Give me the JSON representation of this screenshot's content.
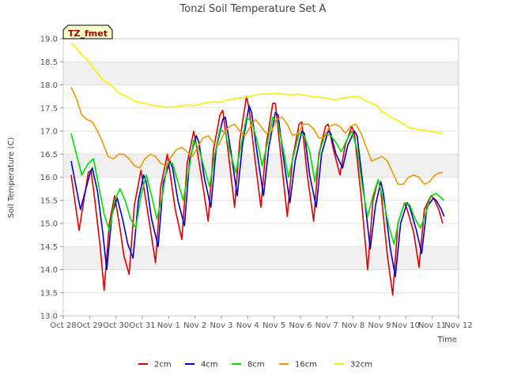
{
  "chart_data": {
    "type": "line",
    "title": "Tonzi Soil Temperature Set A",
    "xlabel": "Time",
    "ylabel": "Soil Temperature (C)",
    "tag": "TZ_fmet",
    "x_unit": "days since Oct 28",
    "xlim": [
      0,
      15
    ],
    "ylim": [
      13.0,
      19.0
    ],
    "x_ticks": [
      {
        "pos": 0,
        "label": "Oct 28"
      },
      {
        "pos": 1,
        "label": "Oct 29"
      },
      {
        "pos": 2,
        "label": "Oct 30"
      },
      {
        "pos": 3,
        "label": "Oct 31"
      },
      {
        "pos": 4,
        "label": "Nov 1"
      },
      {
        "pos": 5,
        "label": "Nov 2"
      },
      {
        "pos": 6,
        "label": "Nov 3"
      },
      {
        "pos": 7,
        "label": "Nov 4"
      },
      {
        "pos": 8,
        "label": "Nov 5"
      },
      {
        "pos": 9,
        "label": "Nov 6"
      },
      {
        "pos": 10,
        "label": "Nov 7"
      },
      {
        "pos": 11,
        "label": "Nov 8"
      },
      {
        "pos": 12,
        "label": "Nov 9"
      },
      {
        "pos": 13,
        "label": "Nov 10"
      },
      {
        "pos": 14,
        "label": "Nov 11"
      },
      {
        "pos": 15,
        "label": "Nov 12"
      }
    ],
    "y_ticks": [
      "13.0",
      "13.5",
      "14.0",
      "14.5",
      "15.0",
      "15.5",
      "16.0",
      "16.5",
      "17.0",
      "17.5",
      "18.0",
      "18.5",
      "19.0"
    ],
    "legend_position": "bottom",
    "grid": true,
    "series": [
      {
        "name": "2cm",
        "color": "#dd0000",
        "x": [
          0.3,
          0.6,
          0.95,
          1.05,
          1.2,
          1.4,
          1.55,
          1.75,
          1.95,
          2.15,
          2.3,
          2.5,
          2.7,
          2.95,
          3.05,
          3.3,
          3.5,
          3.7,
          3.95,
          4.05,
          4.25,
          4.5,
          4.7,
          4.95,
          5.05,
          5.3,
          5.5,
          5.7,
          5.95,
          6.05,
          6.25,
          6.5,
          6.7,
          6.95,
          7.05,
          7.25,
          7.5,
          7.7,
          7.95,
          8.05,
          8.25,
          8.5,
          8.7,
          8.95,
          9.05,
          9.25,
          9.5,
          9.7,
          9.95,
          10.05,
          10.25,
          10.5,
          10.7,
          10.95,
          11.05,
          11.3,
          11.55,
          11.75,
          11.95,
          12.05,
          12.3,
          12.5,
          12.7,
          12.95,
          13.05,
          13.3,
          13.5,
          13.7,
          13.95,
          14.05,
          14.25,
          14.4
        ],
        "y": [
          16.05,
          14.85,
          16.1,
          16.15,
          15.5,
          14.5,
          13.55,
          15.0,
          15.6,
          14.9,
          14.3,
          13.9,
          15.4,
          16.15,
          15.8,
          14.9,
          14.15,
          15.8,
          16.5,
          16.1,
          15.3,
          14.65,
          16.3,
          17.0,
          16.7,
          15.8,
          15.05,
          16.6,
          17.35,
          17.45,
          16.6,
          15.35,
          16.8,
          17.75,
          17.5,
          16.5,
          15.35,
          16.7,
          17.6,
          17.6,
          16.5,
          15.15,
          16.4,
          17.15,
          17.2,
          16.1,
          15.05,
          16.5,
          17.1,
          17.15,
          16.6,
          16.05,
          16.7,
          17.1,
          16.95,
          15.6,
          14.0,
          15.5,
          15.95,
          15.7,
          14.3,
          13.45,
          15.0,
          15.45,
          15.3,
          14.8,
          14.05,
          15.3,
          15.6,
          15.55,
          15.3,
          15.0
        ]
      },
      {
        "name": "4cm",
        "color": "#0000cc",
        "x": [
          0.3,
          0.65,
          1.0,
          1.1,
          1.3,
          1.5,
          1.65,
          1.85,
          2.05,
          2.25,
          2.45,
          2.65,
          2.85,
          3.05,
          3.15,
          3.35,
          3.6,
          3.8,
          4.05,
          4.15,
          4.35,
          4.6,
          4.8,
          5.05,
          5.15,
          5.35,
          5.6,
          5.8,
          6.05,
          6.15,
          6.35,
          6.6,
          6.8,
          7.05,
          7.15,
          7.35,
          7.6,
          7.8,
          8.05,
          8.15,
          8.35,
          8.6,
          8.8,
          9.05,
          9.15,
          9.35,
          9.6,
          9.8,
          10.05,
          10.15,
          10.35,
          10.6,
          10.8,
          11.05,
          11.15,
          11.4,
          11.65,
          11.85,
          12.05,
          12.15,
          12.4,
          12.6,
          12.8,
          13.05,
          13.15,
          13.4,
          13.6,
          13.8,
          14.05,
          14.15,
          14.35,
          14.45
        ],
        "y": [
          16.35,
          15.3,
          16.05,
          16.2,
          15.7,
          14.8,
          14.0,
          15.2,
          15.55,
          15.1,
          14.55,
          14.25,
          15.5,
          16.05,
          15.9,
          15.1,
          14.5,
          15.9,
          16.35,
          16.2,
          15.5,
          14.95,
          16.4,
          16.9,
          16.75,
          16.0,
          15.35,
          16.6,
          17.25,
          17.3,
          16.6,
          15.6,
          16.7,
          17.55,
          17.4,
          16.55,
          15.6,
          16.65,
          17.4,
          17.35,
          16.45,
          15.45,
          16.35,
          17.0,
          16.95,
          16.05,
          15.35,
          16.5,
          17.0,
          16.95,
          16.5,
          16.2,
          16.7,
          17.0,
          16.9,
          15.7,
          14.45,
          15.4,
          15.9,
          15.65,
          14.5,
          13.85,
          15.0,
          15.45,
          15.35,
          14.85,
          14.35,
          15.35,
          15.55,
          15.5,
          15.3,
          15.15
        ]
      },
      {
        "name": "8cm",
        "color": "#00dd00",
        "x": [
          0.3,
          0.7,
          0.95,
          1.15,
          1.35,
          1.55,
          1.75,
          1.95,
          2.15,
          2.35,
          2.55,
          2.75,
          2.95,
          3.15,
          3.35,
          3.55,
          3.75,
          3.95,
          4.15,
          4.35,
          4.55,
          4.75,
          4.95,
          5.15,
          5.35,
          5.55,
          5.75,
          5.95,
          6.15,
          6.35,
          6.55,
          6.75,
          6.95,
          7.15,
          7.35,
          7.55,
          7.75,
          7.95,
          8.15,
          8.35,
          8.55,
          8.75,
          8.95,
          9.15,
          9.35,
          9.55,
          9.75,
          9.95,
          10.15,
          10.35,
          10.55,
          10.75,
          10.95,
          11.15,
          11.35,
          11.55,
          11.75,
          11.95,
          12.15,
          12.35,
          12.55,
          12.75,
          12.95,
          13.15,
          13.35,
          13.55,
          13.75,
          13.95,
          14.15,
          14.35,
          14.45
        ],
        "y": [
          16.95,
          16.05,
          16.3,
          16.4,
          15.8,
          15.2,
          14.85,
          15.5,
          15.75,
          15.5,
          15.1,
          14.9,
          15.6,
          16.05,
          15.6,
          15.1,
          15.55,
          16.3,
          16.3,
          15.9,
          15.5,
          16.1,
          16.8,
          16.6,
          16.2,
          15.8,
          16.5,
          17.05,
          16.95,
          16.5,
          16.1,
          16.7,
          17.3,
          17.2,
          16.8,
          16.25,
          16.75,
          17.3,
          17.15,
          16.6,
          16.0,
          16.5,
          16.95,
          16.9,
          16.55,
          15.9,
          16.6,
          16.95,
          16.9,
          16.75,
          16.55,
          16.8,
          17.0,
          16.6,
          15.8,
          15.15,
          15.6,
          15.95,
          15.5,
          14.95,
          14.55,
          15.1,
          15.45,
          15.4,
          15.1,
          14.9,
          15.2,
          15.6,
          15.65,
          15.55,
          15.5
        ]
      },
      {
        "name": "16cm",
        "color": "#ee9900",
        "x": [
          0.3,
          0.5,
          0.7,
          0.9,
          1.1,
          1.3,
          1.5,
          1.7,
          1.9,
          2.1,
          2.3,
          2.5,
          2.7,
          2.9,
          3.1,
          3.3,
          3.5,
          3.7,
          3.9,
          4.1,
          4.3,
          4.5,
          4.7,
          4.9,
          5.1,
          5.3,
          5.5,
          5.7,
          5.9,
          6.1,
          6.3,
          6.5,
          6.7,
          6.9,
          7.1,
          7.3,
          7.5,
          7.7,
          7.9,
          8.1,
          8.3,
          8.5,
          8.7,
          8.9,
          9.1,
          9.3,
          9.5,
          9.7,
          9.9,
          10.1,
          10.3,
          10.5,
          10.7,
          10.9,
          11.1,
          11.3,
          11.5,
          11.7,
          11.9,
          12.1,
          12.3,
          12.5,
          12.7,
          12.9,
          13.1,
          13.3,
          13.5,
          13.7,
          13.9,
          14.1,
          14.3,
          14.4
        ],
        "y": [
          17.95,
          17.7,
          17.35,
          17.25,
          17.2,
          17.0,
          16.75,
          16.45,
          16.4,
          16.5,
          16.5,
          16.4,
          16.25,
          16.2,
          16.4,
          16.5,
          16.45,
          16.3,
          16.25,
          16.45,
          16.6,
          16.65,
          16.55,
          16.45,
          16.65,
          16.85,
          16.9,
          16.75,
          16.7,
          16.95,
          17.1,
          17.15,
          17.0,
          16.9,
          17.1,
          17.25,
          17.1,
          16.95,
          17.0,
          17.25,
          17.3,
          17.15,
          16.9,
          16.95,
          17.15,
          17.15,
          17.05,
          16.85,
          16.85,
          17.1,
          17.15,
          17.1,
          16.95,
          17.1,
          17.15,
          16.95,
          16.65,
          16.35,
          16.4,
          16.45,
          16.35,
          16.1,
          15.85,
          15.85,
          16.0,
          16.05,
          16.0,
          15.85,
          15.9,
          16.05,
          16.1,
          16.1
        ]
      },
      {
        "name": "32cm",
        "color": "#ffee00",
        "x": [
          0.3,
          0.5,
          0.7,
          0.9,
          1.1,
          1.3,
          1.5,
          1.7,
          1.9,
          2.1,
          2.3,
          2.5,
          2.7,
          2.9,
          3.1,
          3.3,
          3.5,
          3.7,
          3.9,
          4.1,
          4.3,
          4.5,
          4.7,
          4.9,
          5.1,
          5.3,
          5.5,
          5.7,
          5.9,
          6.1,
          6.3,
          6.5,
          6.7,
          6.9,
          7.1,
          7.3,
          7.5,
          7.7,
          7.9,
          8.1,
          8.3,
          8.5,
          8.7,
          8.9,
          9.1,
          9.3,
          9.5,
          9.7,
          9.9,
          10.1,
          10.3,
          10.5,
          10.7,
          10.9,
          11.1,
          11.3,
          11.5,
          11.7,
          11.9,
          12.1,
          12.3,
          12.5,
          12.7,
          12.9,
          13.1,
          13.3,
          13.5,
          13.7,
          13.9,
          14.1,
          14.3,
          14.4
        ],
        "y": [
          18.9,
          18.8,
          18.65,
          18.55,
          18.4,
          18.25,
          18.1,
          18.05,
          17.95,
          17.82,
          17.78,
          17.72,
          17.65,
          17.62,
          17.6,
          17.56,
          17.55,
          17.54,
          17.52,
          17.52,
          17.53,
          17.55,
          17.56,
          17.55,
          17.57,
          17.6,
          17.62,
          17.63,
          17.62,
          17.65,
          17.68,
          17.7,
          17.72,
          17.73,
          17.75,
          17.78,
          17.8,
          17.8,
          17.8,
          17.82,
          17.8,
          17.79,
          17.78,
          17.8,
          17.78,
          17.76,
          17.74,
          17.73,
          17.72,
          17.7,
          17.68,
          17.7,
          17.72,
          17.74,
          17.75,
          17.72,
          17.65,
          17.6,
          17.55,
          17.42,
          17.35,
          17.28,
          17.22,
          17.15,
          17.08,
          17.05,
          17.03,
          17.02,
          17.0,
          16.98,
          16.95,
          16.95
        ]
      }
    ]
  }
}
